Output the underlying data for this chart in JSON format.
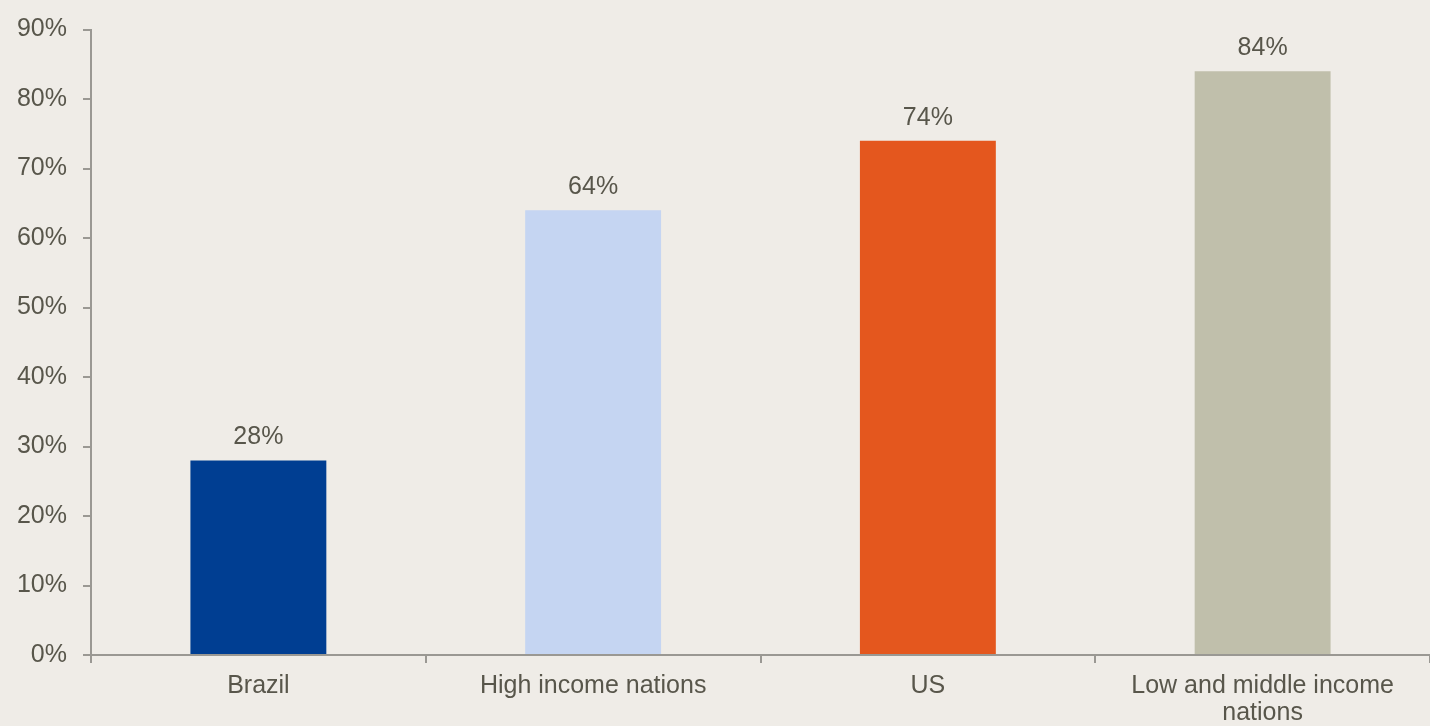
{
  "chart_data": {
    "type": "bar",
    "categories": [
      "Brazil",
      "High income nations",
      "US",
      "Low and middle income nations"
    ],
    "values": [
      28,
      64,
      74,
      84
    ],
    "colors": [
      "#003e92",
      "#c5d5f2",
      "#e4571e",
      "#c0bfab"
    ],
    "value_labels": [
      "28%",
      "64%",
      "74%",
      "84%"
    ],
    "ylim": [
      0,
      90
    ],
    "yticks": [
      {
        "value": 0,
        "label": "0%"
      },
      {
        "value": 10,
        "label": "10%"
      },
      {
        "value": 20,
        "label": "20%"
      },
      {
        "value": 30,
        "label": "30%"
      },
      {
        "value": 40,
        "label": "40%"
      },
      {
        "value": 50,
        "label": "50%"
      },
      {
        "value": 60,
        "label": "60%"
      },
      {
        "value": 70,
        "label": "70%"
      },
      {
        "value": 80,
        "label": "80%"
      },
      {
        "value": 90,
        "label": "90%"
      }
    ]
  }
}
